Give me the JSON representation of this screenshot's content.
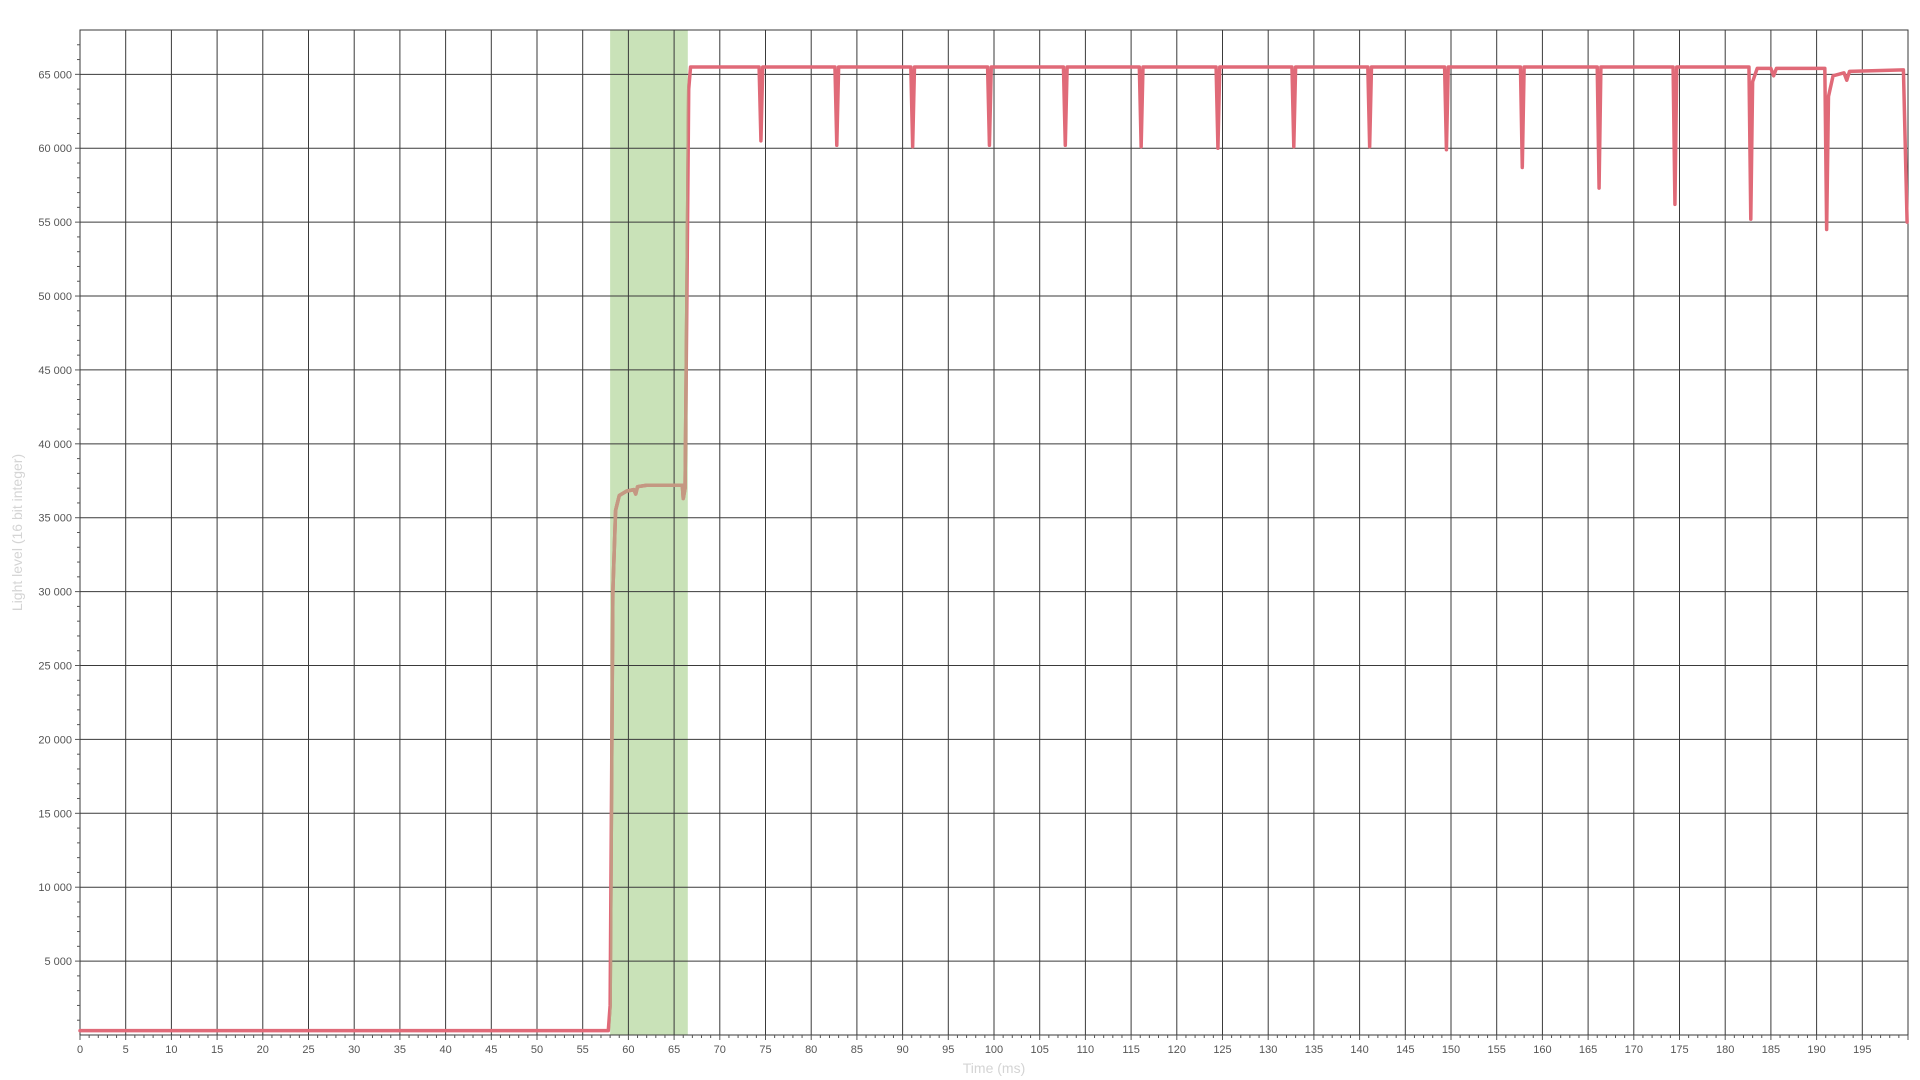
{
  "chart_data": {
    "type": "line",
    "title": "",
    "xlabel": "Time (ms)",
    "ylabel": "Light level (16 bit integer)",
    "xlim": [
      0,
      200
    ],
    "ylim": [
      0,
      68000
    ],
    "grid": true,
    "legend": "none",
    "x_ticks": [
      0,
      5,
      10,
      15,
      20,
      25,
      30,
      35,
      40,
      45,
      50,
      55,
      60,
      65,
      70,
      75,
      80,
      85,
      90,
      95,
      100,
      105,
      110,
      115,
      120,
      125,
      130,
      135,
      140,
      145,
      150,
      155,
      160,
      165,
      170,
      175,
      180,
      185,
      190,
      195
    ],
    "x_tick_labels": [
      "0",
      "5",
      "10",
      "15",
      "20",
      "25",
      "30",
      "35",
      "40",
      "45",
      "50",
      "55",
      "60",
      "65",
      "70",
      "75",
      "80",
      "85",
      "90",
      "95",
      "100",
      "105",
      "110",
      "115",
      "120",
      "125",
      "130",
      "135",
      "140",
      "145",
      "150",
      "155",
      "160",
      "165",
      "170",
      "175",
      "180",
      "185",
      "190",
      "195"
    ],
    "y_ticks": [
      5000,
      10000,
      15000,
      20000,
      25000,
      30000,
      35000,
      40000,
      45000,
      50000,
      55000,
      60000,
      65000
    ],
    "y_tick_labels": [
      "5 000",
      "10 000",
      "15 000",
      "20 000",
      "25 000",
      "30 000",
      "35 000",
      "40 000",
      "45 000",
      "50 000",
      "55 000",
      "60 000",
      "65 000"
    ],
    "highlight_region": {
      "x_start": 58.0,
      "x_end": 66.5,
      "color": "#c9e2b8"
    },
    "colors": {
      "line": "#e06a78",
      "line_in_region": "#c49882",
      "grid": "#3a3a3a",
      "axis_title": "#d4d4d4"
    },
    "series": [
      {
        "values": [
          [
            0,
            300
          ],
          [
            57.8,
            300
          ],
          [
            58.0,
            2000
          ],
          [
            58.3,
            30000
          ],
          [
            58.6,
            35500
          ],
          [
            59.0,
            36500
          ],
          [
            59.8,
            36800
          ],
          [
            60.6,
            36900
          ],
          [
            60.8,
            36600
          ],
          [
            61.0,
            37100
          ],
          [
            62.0,
            37200
          ],
          [
            65.0,
            37200
          ],
          [
            65.9,
            37200
          ],
          [
            66.0,
            36300
          ],
          [
            66.2,
            37000
          ],
          [
            66.4,
            50000
          ],
          [
            66.6,
            64000
          ],
          [
            66.8,
            65500
          ],
          [
            74.3,
            65500
          ],
          [
            74.5,
            60500
          ],
          [
            74.7,
            65500
          ],
          [
            82.6,
            65500
          ],
          [
            82.8,
            60200
          ],
          [
            83.0,
            65500
          ],
          [
            90.9,
            65500
          ],
          [
            91.1,
            60100
          ],
          [
            91.3,
            65500
          ],
          [
            99.3,
            65500
          ],
          [
            99.5,
            60200
          ],
          [
            99.7,
            65500
          ],
          [
            107.6,
            65500
          ],
          [
            107.8,
            60200
          ],
          [
            108.0,
            65500
          ],
          [
            115.9,
            65500
          ],
          [
            116.1,
            60100
          ],
          [
            116.3,
            65500
          ],
          [
            124.3,
            65500
          ],
          [
            124.5,
            60000
          ],
          [
            124.7,
            65500
          ],
          [
            132.6,
            65500
          ],
          [
            132.8,
            60100
          ],
          [
            133.0,
            65500
          ],
          [
            140.9,
            65500
          ],
          [
            141.1,
            60100
          ],
          [
            141.3,
            65500
          ],
          [
            149.3,
            65500
          ],
          [
            149.5,
            59900
          ],
          [
            149.7,
            65500
          ],
          [
            157.6,
            65500
          ],
          [
            157.8,
            58700
          ],
          [
            158.0,
            65500
          ],
          [
            166.0,
            65500
          ],
          [
            166.2,
            57300
          ],
          [
            166.4,
            65500
          ],
          [
            174.3,
            65500
          ],
          [
            174.5,
            56200
          ],
          [
            174.7,
            65500
          ],
          [
            182.6,
            65500
          ],
          [
            182.8,
            55200
          ],
          [
            183.0,
            64500
          ],
          [
            183.5,
            65400
          ],
          [
            185.0,
            65400
          ],
          [
            185.3,
            64900
          ],
          [
            185.6,
            65400
          ],
          [
            188.0,
            65400
          ],
          [
            190.9,
            65400
          ],
          [
            191.1,
            54500
          ],
          [
            191.3,
            63500
          ],
          [
            191.8,
            64900
          ],
          [
            193.0,
            65100
          ],
          [
            193.3,
            64600
          ],
          [
            193.6,
            65200
          ],
          [
            199.5,
            65300
          ],
          [
            199.9,
            55000
          ]
        ]
      }
    ]
  }
}
